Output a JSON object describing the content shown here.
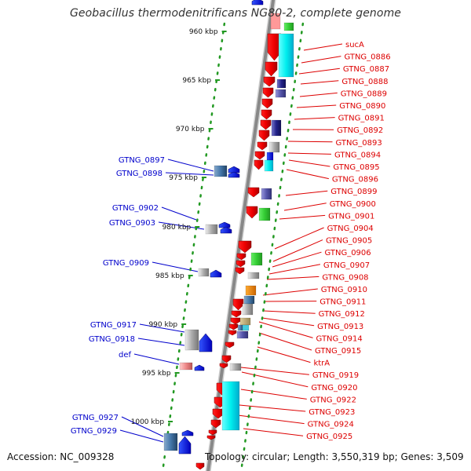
{
  "title": "Geobacillus thermodenitrificans NG80-2, complete genome",
  "footer": {
    "accession": "Accession: NC_009328",
    "summary": "Topology: circular; Length: 3,550,319 bp; Genes: 3,509"
  },
  "ruler": [
    "960 kbp",
    "965 kbp",
    "970 kbp",
    "975 kbp",
    "980 kbp",
    "985 kbp",
    "990 kbp",
    "995 kbp",
    "1000 kbp"
  ],
  "right_labels": [
    "sucA",
    "GTNG_0886",
    "GTNG_0887",
    "GTNG_0888",
    "GTNG_0889",
    "GTNG_0890",
    "GTNG_0891",
    "GTNG_0892",
    "GTNG_0893",
    "GTNG_0894",
    "GTNG_0895",
    "GTNG_0896",
    "GTNG_0899",
    "GTNG_0900",
    "GTNG_0901",
    "GTNG_0904",
    "GTNG_0905",
    "GTNG_0906",
    "GTNG_0907",
    "GTNG_0908",
    "GTNG_0910",
    "GTNG_0911",
    "GTNG_0912",
    "GTNG_0913",
    "GTNG_0914",
    "GTNG_0915",
    "ktrA",
    "GTNG_0919",
    "GTNG_0920",
    "GTNG_0922",
    "GTNG_0923",
    "GTNG_0924",
    "GTNG_0925"
  ],
  "left_labels": [
    "GTNG_0897",
    "GTNG_0898",
    "GTNG_0902",
    "GTNG_0903",
    "GTNG_0909",
    "GTNG_0917",
    "GTNG_0918",
    "def",
    "GTNG_0927",
    "GTNG_0929"
  ],
  "colors": {
    "forward_gene": "#ff0000",
    "reverse_gene": "#0000ff",
    "backbone": "#888888",
    "ruler_dots": "#229922",
    "right_label": "#dd0000",
    "left_label": "#0000cc"
  }
}
